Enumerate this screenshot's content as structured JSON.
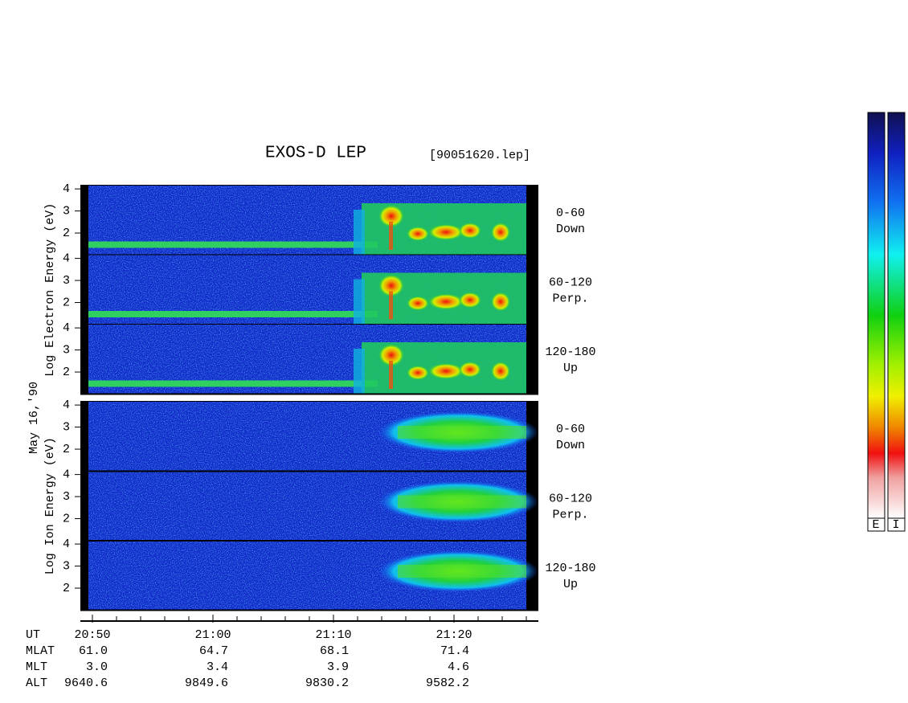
{
  "chart_data": {
    "type": "spectrogram",
    "title": "EXOS-D LEP",
    "file": "[90051620.lep]",
    "date": "May 16,'90",
    "ylim": [
      1,
      4.15
    ],
    "yticks": [
      2,
      3,
      4
    ],
    "groups": [
      {
        "ylabel": "Log  Electron  Energy (eV)",
        "panels": [
          {
            "label": "0-60",
            "sublabel": "Down"
          },
          {
            "label": "60-120",
            "sublabel": "Perp."
          },
          {
            "label": "120-180",
            "sublabel": "Up"
          }
        ]
      },
      {
        "ylabel": "Log  Ion  Energy (eV)",
        "panels": [
          {
            "label": "0-60",
            "sublabel": "Down"
          },
          {
            "label": "60-120",
            "sublabel": "Perp."
          },
          {
            "label": "120-180",
            "sublabel": "Up"
          }
        ]
      }
    ],
    "xlim": [
      1249,
      1287
    ],
    "xticks": [
      {
        "value": 1250,
        "label": "20:50"
      },
      {
        "value": 1260,
        "label": "21:00"
      },
      {
        "value": 1270,
        "label": "21:10"
      },
      {
        "value": 1280,
        "label": "21:20"
      }
    ],
    "minor_xticks": [
      1252,
      1254,
      1256,
      1258,
      1262,
      1264,
      1266,
      1268,
      1272,
      1274,
      1276,
      1278,
      1282,
      1284,
      1286
    ],
    "x_row_name": "UT",
    "ephemeris": [
      {
        "name": "MLAT",
        "values": [
          "61.0",
          "64.7",
          "68.1",
          "71.4"
        ]
      },
      {
        "name": "MLT",
        "values": [
          "3.0",
          "3.4",
          "3.9",
          "4.6"
        ]
      },
      {
        "name": "ALT",
        "values": [
          "9640.6",
          "9849.6",
          "9830.2",
          "9582.2"
        ]
      }
    ],
    "colorbars": [
      "E",
      "I"
    ]
  }
}
